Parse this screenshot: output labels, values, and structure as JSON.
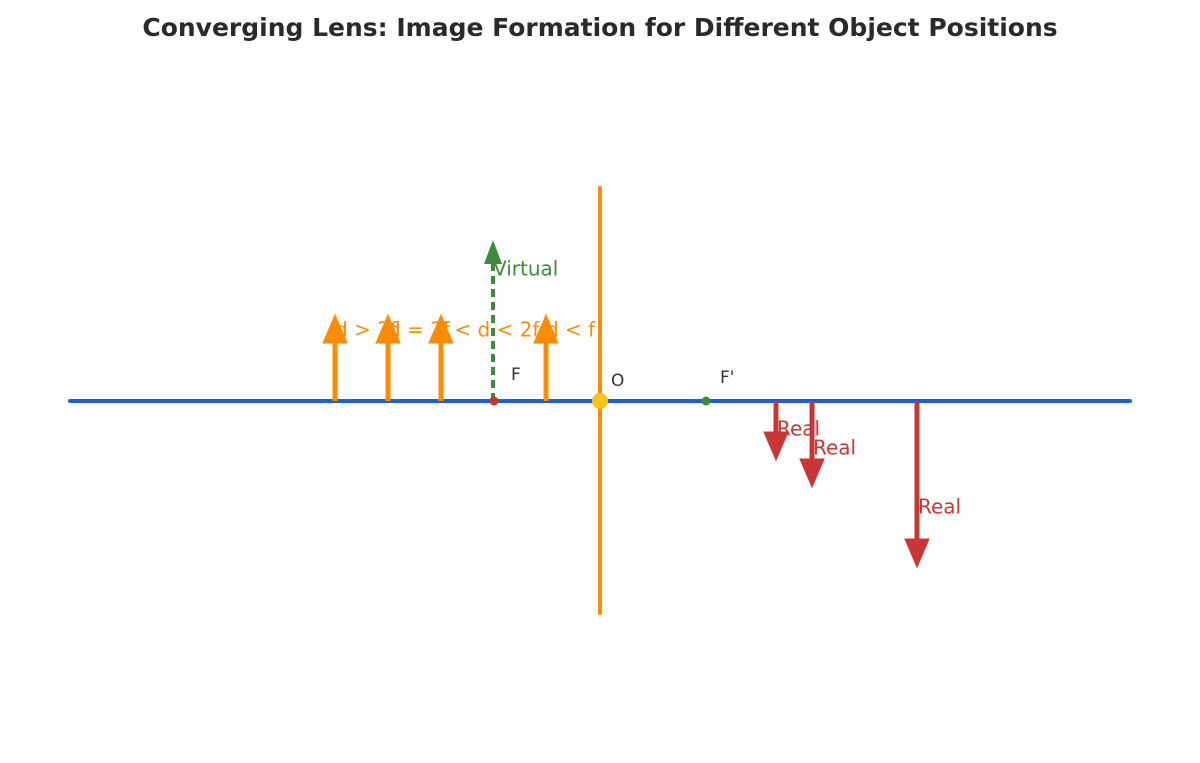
{
  "header": {
    "title": "Converging Lens: Image Formation for Different Object Positions"
  },
  "objects": [
    {
      "label": "d > 2f"
    },
    {
      "label": "d = 2f"
    },
    {
      "label": "f < d < 2f"
    },
    {
      "label": "d < f"
    }
  ],
  "images": [
    {
      "label": "Virtual"
    },
    {
      "label": "Real"
    },
    {
      "label": "Real"
    },
    {
      "label": "Real"
    }
  ],
  "points": [
    {
      "label": "F"
    },
    {
      "label": "O"
    },
    {
      "label": "F'"
    }
  ]
}
